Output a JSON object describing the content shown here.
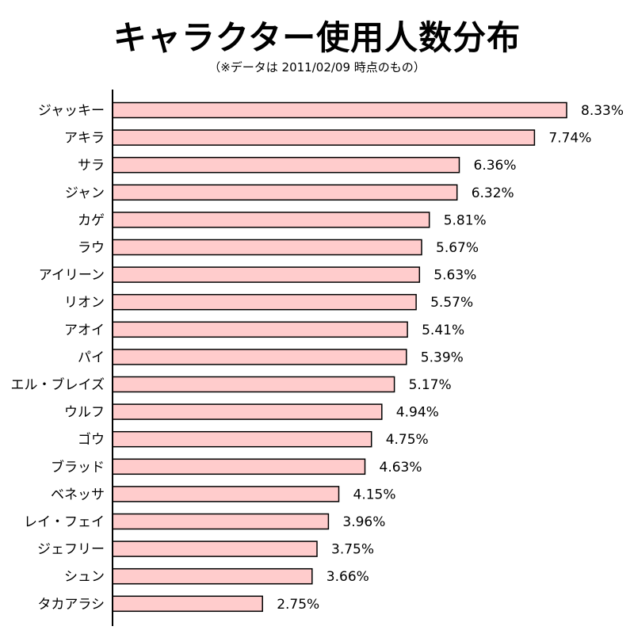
{
  "colors": {
    "bar_fill": "#ffcccc",
    "bar_stroke": "#000000",
    "axis": "#000000",
    "text": "#000000",
    "background": "#ffffff"
  },
  "chart_data": {
    "type": "bar",
    "orientation": "horizontal",
    "title": "キャラクター使用人数分布",
    "subtitle": "（※データは 2011/02/09 時点のもの）",
    "value_suffix": "%",
    "grid": false,
    "legend": "none",
    "xlim": [
      0,
      8.33
    ],
    "categories": [
      "ジャッキー",
      "アキラ",
      "サラ",
      "ジャン",
      "カゲ",
      "ラウ",
      "アイリーン",
      "リオン",
      "アオイ",
      "パイ",
      "エル・ブレイズ",
      "ウルフ",
      "ゴウ",
      "ブラッド",
      "ベネッサ",
      "レイ・フェイ",
      "ジェフリー",
      "シュン",
      "タカアラシ"
    ],
    "values": [
      8.33,
      7.74,
      6.36,
      6.32,
      5.81,
      5.67,
      5.63,
      5.57,
      5.41,
      5.39,
      5.17,
      4.94,
      4.75,
      4.63,
      4.15,
      3.96,
      3.75,
      3.66,
      2.75
    ],
    "value_labels": [
      "8.33%",
      "7.74%",
      "6.36%",
      "6.32%",
      "5.81%",
      "5.67%",
      "5.63%",
      "5.57%",
      "5.41%",
      "5.39%",
      "5.17%",
      "4.94%",
      "4.75%",
      "4.63%",
      "4.15%",
      "3.96%",
      "3.75%",
      "3.66%",
      "2.75%"
    ]
  }
}
